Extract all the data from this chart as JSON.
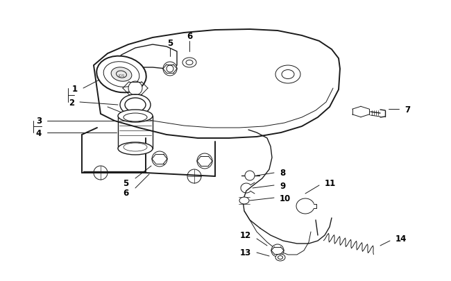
{
  "background_color": "#ffffff",
  "line_color": "#1a1a1a",
  "label_color": "#000000",
  "fig_width": 6.5,
  "fig_height": 4.06,
  "dpi": 100,
  "font_size": 8.5,
  "lw_main": 1.4,
  "lw_med": 1.0,
  "lw_thin": 0.7
}
